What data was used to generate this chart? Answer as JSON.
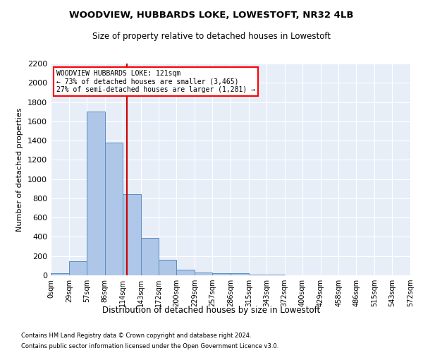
{
  "title1": "WOODVIEW, HUBBARDS LOKE, LOWESTOFT, NR32 4LB",
  "title2": "Size of property relative to detached houses in Lowestoft",
  "xlabel": "Distribution of detached houses by size in Lowestoft",
  "ylabel": "Number of detached properties",
  "footer1": "Contains HM Land Registry data © Crown copyright and database right 2024.",
  "footer2": "Contains public sector information licensed under the Open Government Licence v3.0.",
  "annotation_line1": "WOODVIEW HUBBARDS LOKE: 121sqm",
  "annotation_line2": "← 73% of detached houses are smaller (3,465)",
  "annotation_line3": "27% of semi-detached houses are larger (1,281) →",
  "property_size": 121,
  "bin_edges": [
    0,
    29,
    57,
    86,
    114,
    143,
    172,
    200,
    229,
    257,
    286,
    315,
    343,
    372,
    400,
    429,
    458,
    486,
    515,
    543,
    572
  ],
  "bar_values": [
    20,
    150,
    1700,
    1380,
    840,
    390,
    165,
    60,
    30,
    25,
    25,
    5,
    5,
    0,
    0,
    0,
    0,
    0,
    0,
    0
  ],
  "bar_color": "#aec6e8",
  "bar_edge_color": "#5a8fc0",
  "vline_color": "#cc0000",
  "bg_color": "#e8eef8",
  "ylim": [
    0,
    2200
  ],
  "yticks": [
    0,
    200,
    400,
    600,
    800,
    1000,
    1200,
    1400,
    1600,
    1800,
    2000,
    2200
  ]
}
